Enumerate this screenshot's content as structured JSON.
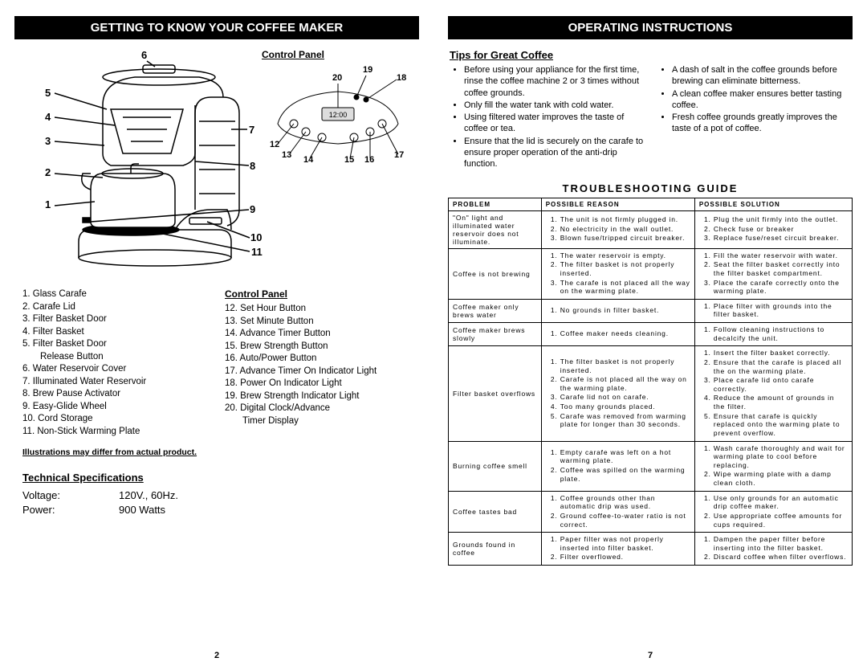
{
  "left": {
    "header": "GETTING TO KNOW  YOUR COFFEE MAKER",
    "page_num": "2",
    "control_panel_label": "Control Panel",
    "diagram_numbers": [
      "1",
      "2",
      "3",
      "4",
      "5",
      "6",
      "7",
      "8",
      "9",
      "10",
      "11"
    ],
    "cp_numbers": [
      "12",
      "13",
      "14",
      "15",
      "16",
      "17",
      "18",
      "19",
      "20"
    ],
    "parts_left": [
      "1.  Glass Carafe",
      "2.  Carafe Lid",
      "3.  Filter Basket Door",
      "4.  Filter Basket",
      "5.  Filter Basket Door",
      "     Release Button",
      "6.  Water Reservoir Cover",
      "7.  Illuminated Water Reservoir",
      "8.  Brew Pause Activator",
      "9.  Easy-Glide Wheel",
      "10.  Cord Storage",
      "11.  Non-Stick Warming Plate"
    ],
    "parts_right_title": "Control Panel",
    "parts_right": [
      "12.  Set Hour Button",
      "13.  Set Minute Button",
      "14.  Advance Timer Button",
      "15.  Brew Strength Button",
      "16.  Auto/Power Button",
      "17.  Advance Timer On Indicator Light",
      "18.  Power On Indicator Light",
      "19.  Brew Strength Indicator Light",
      "20.  Digital Clock/Advance",
      "       Timer Display"
    ],
    "illus_note": "Illustrations may differ from actual product.",
    "tech_title": "Technical Specifications",
    "specs": [
      {
        "label": "Voltage:",
        "value": "120V.,  60Hz."
      },
      {
        "label": "Power:",
        "value": "900 Watts"
      }
    ]
  },
  "right": {
    "header": "OPERATING INSTRUCTIONS",
    "page_num": "7",
    "tips_title": "Tips for Great Coffee",
    "tips_left": [
      "Before using your appliance for the first time, rinse the coffee machine 2 or 3 times without coffee grounds.",
      "Only fill the water tank with cold water.",
      "Using filtered water improves the taste of coffee or tea.",
      "Ensure that the lid is securely on the carafe to ensure proper operation of the anti-drip function."
    ],
    "tips_right": [
      "A dash of salt in the coffee grounds before brewing can eliminate bitterness.",
      "A clean coffee maker ensures better tasting coffee.",
      "Fresh coffee grounds greatly improves the taste of a pot of coffee."
    ],
    "ts_title": "TROUBLESHOOTING GUIDE",
    "ts_headers": [
      "PROBLEM",
      "POSSIBLE REASON",
      "POSSIBLE SOLUTION"
    ],
    "ts_rows": [
      {
        "problem": "\"On\" light and illuminated water reservoir does not illuminate.",
        "reason": [
          "The unit is not firmly plugged in.",
          "No electricity in the wall outlet.",
          "Blown fuse/tripped circuit breaker."
        ],
        "solution": [
          "Plug the unit firmly into the outlet.",
          "Check fuse or breaker",
          "Replace fuse/reset circuit breaker."
        ]
      },
      {
        "problem": "Coffee is not brewing",
        "reason": [
          "The water reservoir is empty.",
          "The filter basket is not properly inserted.",
          "The carafe is not placed all the way on the warming plate."
        ],
        "solution": [
          "Fill the water reservoir with water.",
          "Seat the filter basket correctly into the filter basket compartment.",
          "Place the carafe correctly onto the warming plate."
        ]
      },
      {
        "problem": "Coffee maker only brews water",
        "reason": [
          "No grounds in filter basket."
        ],
        "solution": [
          "Place filter with grounds into the filter basket."
        ]
      },
      {
        "problem": "Coffee maker brews slowly",
        "reason": [
          "Coffee maker needs cleaning."
        ],
        "solution": [
          "Follow cleaning instructions to decalcify the unit."
        ]
      },
      {
        "problem": "Filter basket overflows",
        "reason": [
          "The filter basket is not properly inserted.",
          "Carafe is not placed all the way on the warming plate.",
          "Carafe lid not on carafe.",
          "Too many grounds placed.",
          "Carafe was removed from warming plate for longer than 30 seconds."
        ],
        "solution": [
          "Insert the filter basket correctly.",
          "Ensure that the carafe is placed all the on the warming plate.",
          "Place carafe lid onto carafe correctly.",
          "Reduce the amount of grounds in the filter.",
          "Ensure that carafe is quickly replaced onto the warming plate to prevent overflow."
        ]
      },
      {
        "problem": "Burning coffee smell",
        "reason": [
          "Empty carafe was left on a hot warming plate.",
          "Coffee was spilled on the warming plate."
        ],
        "solution": [
          "Wash carafe thoroughly and wait for warming plate to cool before replacing.",
          "Wipe warming plate with a damp clean cloth."
        ]
      },
      {
        "problem": "Coffee tastes bad",
        "reason": [
          "Coffee grounds other than automatic drip was used.",
          "Ground coffee-to-water ratio is not correct."
        ],
        "solution": [
          "Use only grounds for an automatic drip coffee maker.",
          "Use appropriate coffee amounts for cups required."
        ]
      },
      {
        "problem": "Grounds found in coffee",
        "reason": [
          "Paper filter was not properly inserted into filter basket.",
          "Filter overflowed."
        ],
        "solution": [
          "Dampen the paper filter before inserting into the filter basket.",
          "Discard coffee when filter overflows."
        ]
      }
    ]
  }
}
